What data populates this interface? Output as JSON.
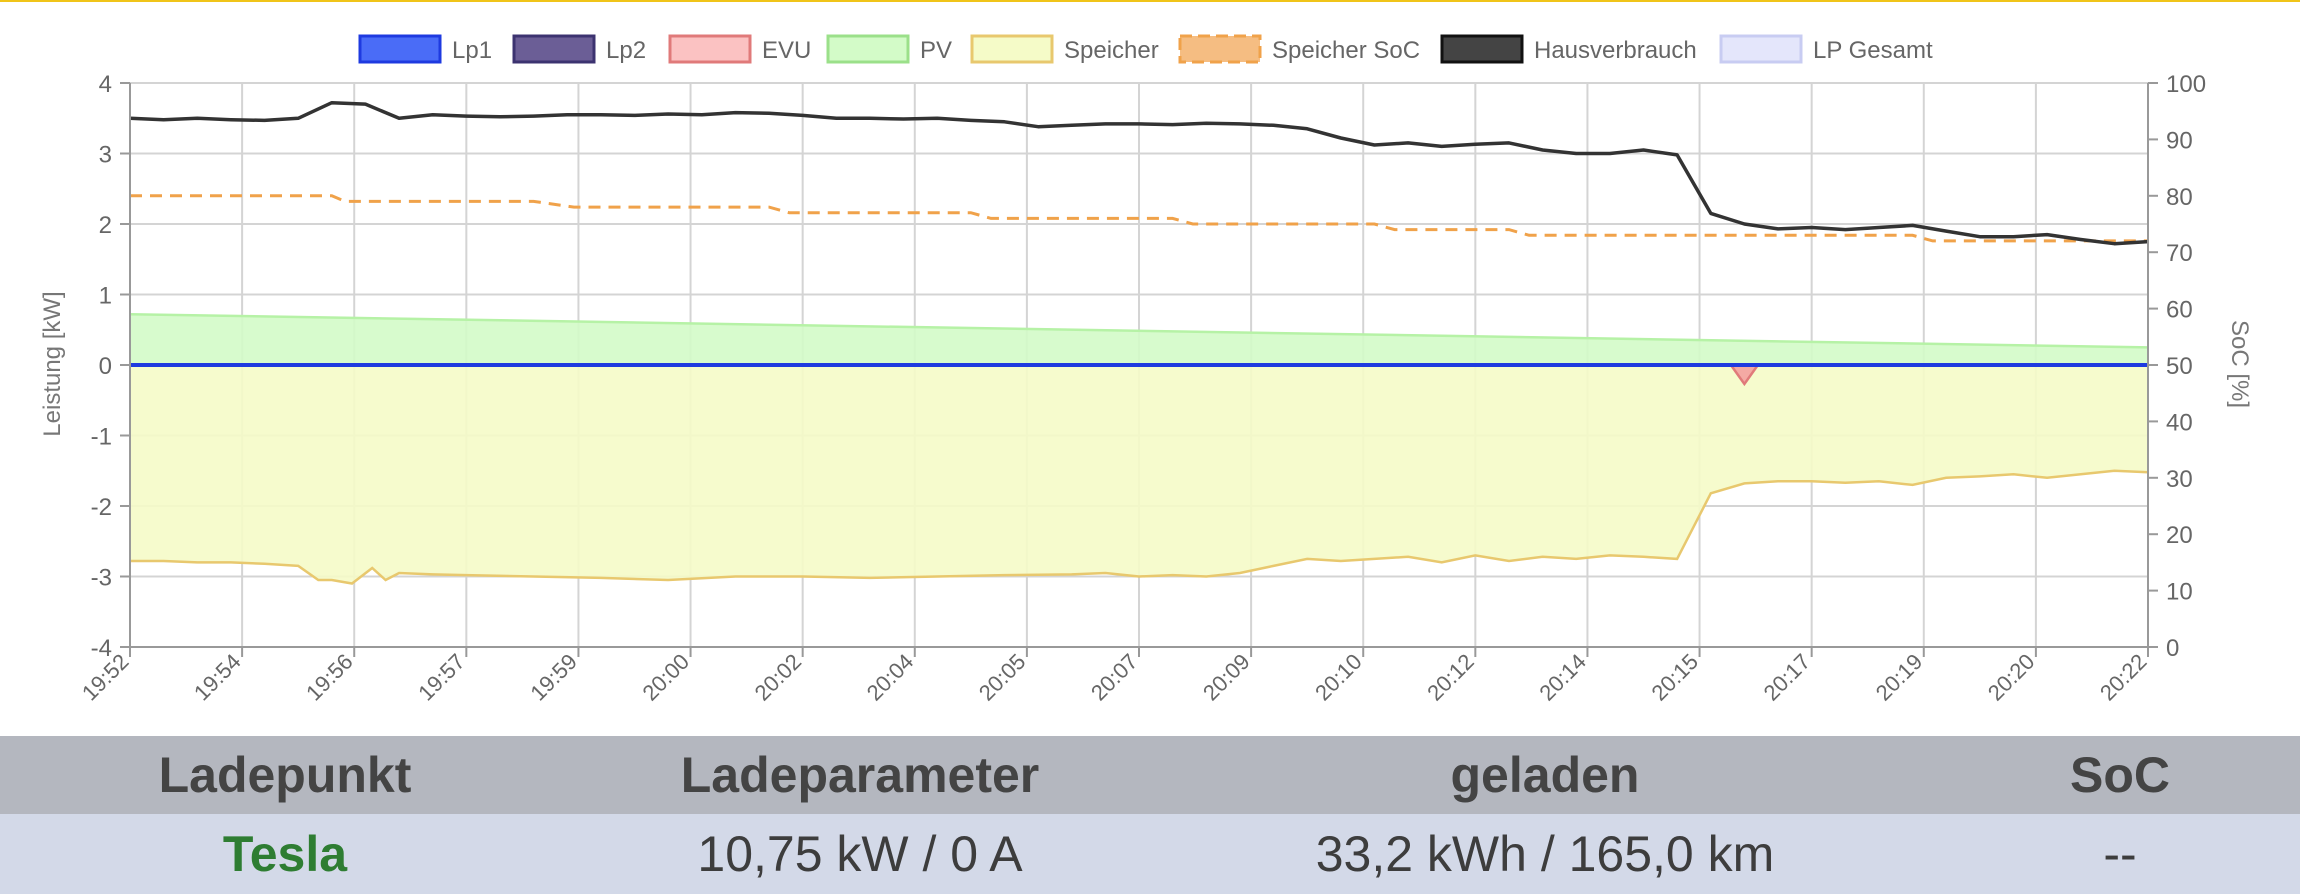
{
  "chart_data": {
    "type": "area",
    "legend": [
      {
        "name": "Lp1",
        "fill": "#4a6cf7",
        "stroke": "#1e3ae0",
        "dashed": false
      },
      {
        "name": "Lp2",
        "fill": "#6b5e96",
        "stroke": "#3c3370",
        "dashed": false
      },
      {
        "name": "EVU",
        "fill": "#fbc2c2",
        "stroke": "#e07a7a",
        "dashed": false
      },
      {
        "name": "PV",
        "fill": "#d3fbc8",
        "stroke": "#9be08a",
        "dashed": false
      },
      {
        "name": "Speicher",
        "fill": "#f5fbc8",
        "stroke": "#e8c86e",
        "dashed": false
      },
      {
        "name": "Speicher SoC",
        "fill": "#f5bd82",
        "stroke": "#f0a24a",
        "dashed": true
      },
      {
        "name": "Hausverbrauch",
        "fill": "#444444",
        "stroke": "#111111",
        "dashed": false
      },
      {
        "name": "LP Gesamt",
        "fill": "#e4e6fb",
        "stroke": "#c8ccf2",
        "dashed": false
      }
    ],
    "legend_position": "top",
    "grid": true,
    "x_ticks": [
      "19:52",
      "19:54",
      "19:56",
      "19:57",
      "19:59",
      "20:00",
      "20:02",
      "20:04",
      "20:05",
      "20:07",
      "20:09",
      "20:10",
      "20:12",
      "20:14",
      "20:15",
      "20:17",
      "20:19",
      "20:20",
      "20:22"
    ],
    "x_range_min": [
      0,
      30
    ],
    "ylabel_left": "Leistung [kW]",
    "ylim_left": [
      -4,
      4
    ],
    "y_ticks_left": [
      "4",
      "3",
      "2",
      "1",
      "0",
      "-1",
      "-2",
      "-3",
      "-4"
    ],
    "ylabel_right": "SoC [%]",
    "ylim_right": [
      0,
      100
    ],
    "y_ticks_right": [
      "100",
      "90",
      "80",
      "70",
      "60",
      "50",
      "40",
      "30",
      "20",
      "10",
      "0"
    ],
    "series": [
      {
        "name": "Hausverbrauch",
        "axis": "left",
        "color": "#333333",
        "x": [
          0,
          0.5,
          1,
          1.5,
          2,
          2.5,
          3,
          3.5,
          4,
          4.5,
          5,
          5.5,
          6,
          6.5,
          7,
          7.5,
          8,
          8.5,
          9,
          9.5,
          10,
          10.5,
          11,
          11.5,
          12,
          12.5,
          13,
          13.5,
          14,
          14.5,
          15,
          15.5,
          16,
          16.5,
          17,
          17.5,
          18,
          18.5,
          19,
          19.5,
          20,
          20.5,
          21,
          21.5,
          22,
          22.5,
          23,
          23.5,
          24,
          24.5,
          25,
          25.5,
          26,
          26.5,
          27,
          27.5,
          28,
          28.5,
          29,
          29.5,
          30
        ],
        "y": [
          3.5,
          3.48,
          3.5,
          3.48,
          3.47,
          3.5,
          3.72,
          3.7,
          3.5,
          3.55,
          3.53,
          3.52,
          3.53,
          3.55,
          3.55,
          3.54,
          3.56,
          3.55,
          3.58,
          3.57,
          3.54,
          3.5,
          3.5,
          3.49,
          3.5,
          3.47,
          3.45,
          3.38,
          3.4,
          3.42,
          3.42,
          3.41,
          3.43,
          3.42,
          3.4,
          3.35,
          3.22,
          3.12,
          3.15,
          3.1,
          3.13,
          3.15,
          3.05,
          3.0,
          3.0,
          3.05,
          2.98,
          2.15,
          2.0,
          1.93,
          1.95,
          1.92,
          1.95,
          1.98,
          1.9,
          1.82,
          1.82,
          1.85,
          1.78,
          1.72,
          1.75
        ]
      },
      {
        "name": "Speicher SoC",
        "axis": "right",
        "color": "#f0a24a",
        "dashed": true,
        "x": [
          0,
          3,
          3.2,
          6,
          6.6,
          9.5,
          9.8,
          12.5,
          12.8,
          15.5,
          15.8,
          18.5,
          18.8,
          20.5,
          20.8,
          23.5,
          26.5,
          26.8,
          30
        ],
        "y": [
          80,
          80,
          79,
          79,
          78,
          78,
          77,
          77,
          76,
          76,
          75,
          75,
          74,
          74,
          73,
          73,
          73,
          72,
          72
        ]
      },
      {
        "name": "PV",
        "axis": "left",
        "color": "#b6f2a6",
        "x": [
          0,
          30
        ],
        "y": [
          0.72,
          0.25
        ]
      },
      {
        "name": "Speicher",
        "axis": "left",
        "color": "#e8c86e",
        "x": [
          0,
          0.5,
          1,
          1.5,
          2,
          2.5,
          2.8,
          3,
          3.3,
          3.6,
          3.8,
          4,
          4.5,
          5,
          6,
          7,
          8,
          9,
          10,
          11,
          12,
          13,
          14,
          14.5,
          15,
          15.5,
          16,
          16.5,
          17,
          17.5,
          18,
          18.5,
          19,
          19.5,
          20,
          20.5,
          21,
          21.5,
          22,
          22.5,
          23,
          23.5,
          24,
          24.5,
          25,
          25.5,
          26,
          26.5,
          27,
          27.5,
          28,
          28.5,
          29,
          29.5,
          30
        ],
        "y": [
          -2.78,
          -2.78,
          -2.8,
          -2.8,
          -2.82,
          -2.85,
          -3.05,
          -3.05,
          -3.1,
          -2.88,
          -3.05,
          -2.95,
          -2.97,
          -2.98,
          -3.0,
          -3.02,
          -3.05,
          -3.0,
          -3.0,
          -3.02,
          -3.0,
          -2.98,
          -2.97,
          -2.95,
          -3.0,
          -2.98,
          -3.0,
          -2.95,
          -2.85,
          -2.75,
          -2.78,
          -2.75,
          -2.72,
          -2.8,
          -2.7,
          -2.78,
          -2.72,
          -2.75,
          -2.7,
          -2.72,
          -2.75,
          -1.82,
          -1.68,
          -1.65,
          -1.65,
          -1.67,
          -1.65,
          -1.7,
          -1.6,
          -1.58,
          -1.55,
          -1.6,
          -1.55,
          -1.5,
          -1.52
        ]
      },
      {
        "name": "EVU",
        "axis": "left",
        "color": "#e07a7a",
        "x": [
          0,
          23.8,
          24.0,
          24.2,
          30
        ],
        "y": [
          0,
          0,
          -0.27,
          0,
          0
        ]
      },
      {
        "name": "Lp1",
        "axis": "left",
        "color": "#1e3ae0",
        "x": [
          0,
          30
        ],
        "y": [
          0,
          0
        ]
      },
      {
        "name": "Lp2",
        "axis": "left",
        "color": "#3c3370",
        "x": [
          0,
          30
        ],
        "y": [
          0,
          0
        ]
      }
    ]
  },
  "table": {
    "headers": [
      "Ladepunkt",
      "Ladeparameter",
      "geladen",
      "SoC"
    ],
    "row": {
      "name": "Tesla",
      "params": "10,75 kW / 0 A",
      "charged": "33,2 kWh / 165,0 km",
      "soc": "--"
    }
  }
}
